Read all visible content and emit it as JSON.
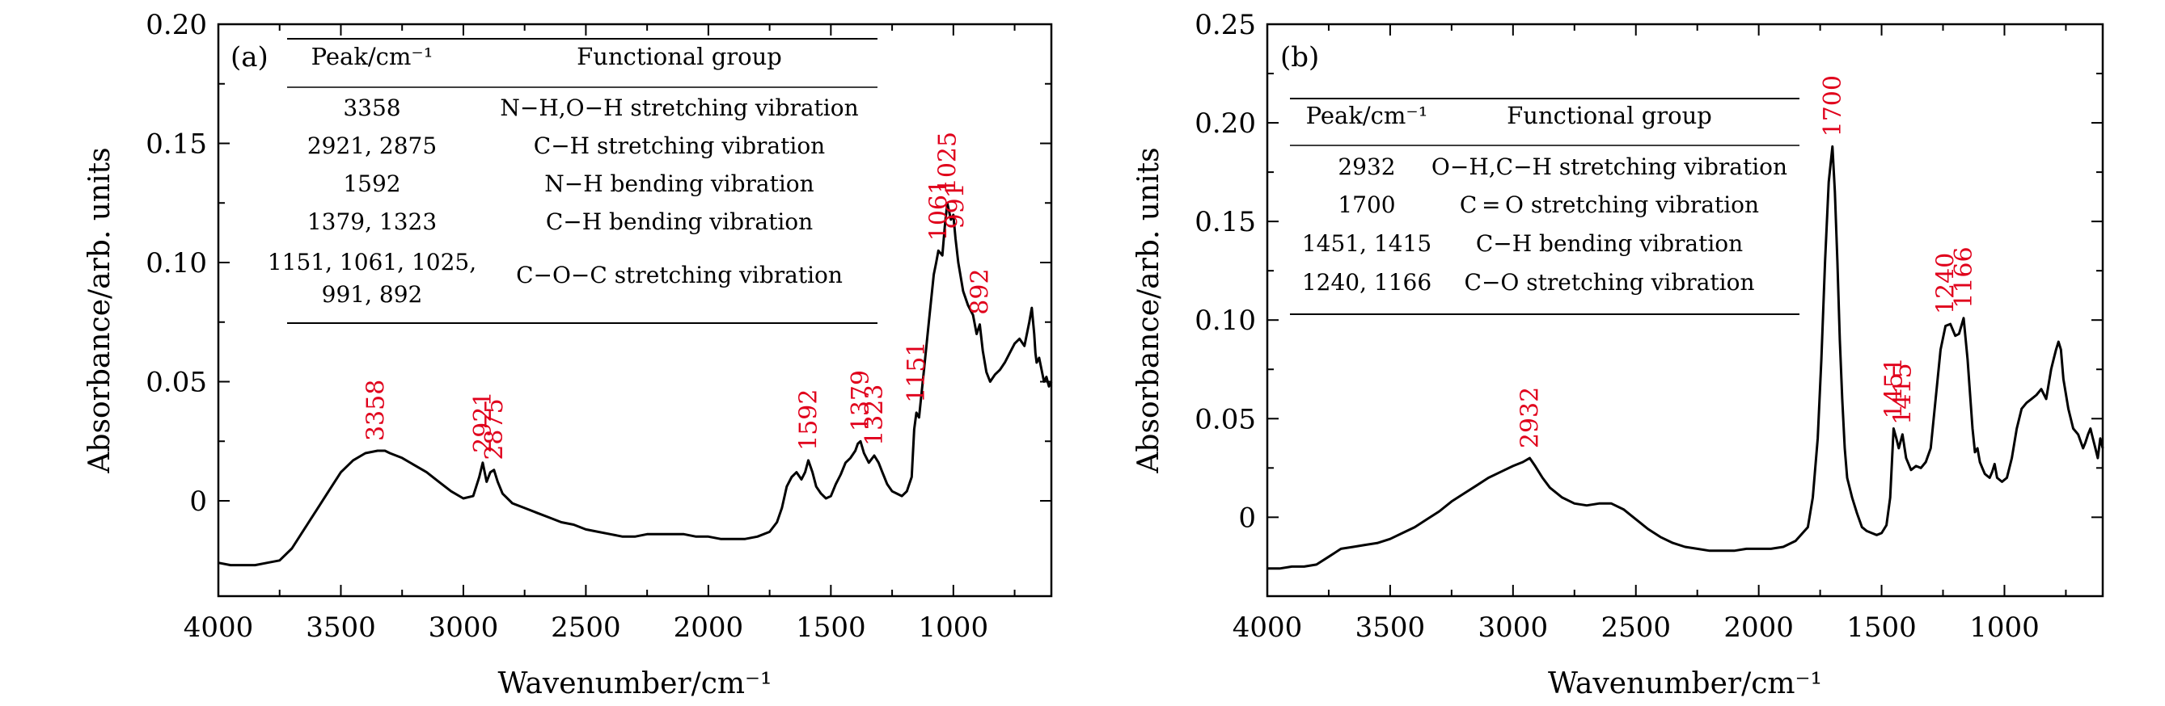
{
  "chart_data": [
    {
      "type": "line",
      "panel_label": "(a)",
      "xlabel": "Wavenumber/cm⁻¹",
      "ylabel": "Absorbance/arb. units",
      "xlim": [
        4000,
        600
      ],
      "ylim": [
        -0.04,
        0.2
      ],
      "x_reversed": true,
      "x_ticks": [
        4000,
        3500,
        3000,
        2500,
        2000,
        1500,
        1000
      ],
      "x_tick_labels": [
        "4000",
        "3500",
        "3000",
        "2500",
        "2000",
        "1500",
        "1000"
      ],
      "y_ticks": [
        0,
        0.05,
        0.1,
        0.15,
        0.2
      ],
      "y_tick_labels": [
        "0",
        "0.05",
        "0.10",
        "0.15",
        "0.20"
      ],
      "grid": false,
      "series": [
        {
          "color": "#000000",
          "x": [
            4000,
            3950,
            3900,
            3850,
            3800,
            3750,
            3700,
            3650,
            3600,
            3550,
            3500,
            3450,
            3400,
            3350,
            3320,
            3300,
            3250,
            3200,
            3150,
            3100,
            3050,
            3000,
            2960,
            2935,
            2921,
            2905,
            2890,
            2875,
            2860,
            2840,
            2800,
            2750,
            2700,
            2650,
            2600,
            2550,
            2500,
            2450,
            2400,
            2350,
            2300,
            2250,
            2200,
            2150,
            2100,
            2050,
            2000,
            1950,
            1900,
            1850,
            1800,
            1750,
            1720,
            1700,
            1680,
            1660,
            1640,
            1620,
            1605,
            1592,
            1575,
            1560,
            1540,
            1520,
            1500,
            1480,
            1460,
            1440,
            1420,
            1400,
            1390,
            1379,
            1365,
            1345,
            1323,
            1305,
            1290,
            1270,
            1250,
            1230,
            1210,
            1190,
            1170,
            1160,
            1151,
            1140,
            1120,
            1100,
            1080,
            1070,
            1061,
            1045,
            1035,
            1025,
            1010,
            1000,
            991,
            980,
            960,
            940,
            920,
            905,
            892,
            880,
            865,
            850,
            830,
            810,
            790,
            770,
            750,
            730,
            710,
            690,
            680,
            670,
            665,
            660,
            650,
            640,
            630,
            620,
            610,
            600
          ],
          "y": [
            -0.026,
            -0.027,
            -0.027,
            -0.027,
            -0.026,
            -0.025,
            -0.02,
            -0.012,
            -0.004,
            0.004,
            0.012,
            0.017,
            0.02,
            0.021,
            0.021,
            0.02,
            0.018,
            0.015,
            0.012,
            0.008,
            0.004,
            0.001,
            0.002,
            0.01,
            0.016,
            0.008,
            0.012,
            0.013,
            0.008,
            0.003,
            -0.001,
            -0.003,
            -0.005,
            -0.007,
            -0.009,
            -0.01,
            -0.012,
            -0.013,
            -0.014,
            -0.015,
            -0.015,
            -0.014,
            -0.014,
            -0.014,
            -0.014,
            -0.015,
            -0.015,
            -0.016,
            -0.016,
            -0.016,
            -0.015,
            -0.013,
            -0.009,
            -0.003,
            0.006,
            0.01,
            0.012,
            0.009,
            0.012,
            0.017,
            0.012,
            0.006,
            0.003,
            0.001,
            0.002,
            0.007,
            0.011,
            0.016,
            0.018,
            0.021,
            0.024,
            0.025,
            0.02,
            0.016,
            0.019,
            0.016,
            0.012,
            0.007,
            0.004,
            0.003,
            0.002,
            0.004,
            0.01,
            0.03,
            0.037,
            0.035,
            0.055,
            0.075,
            0.095,
            0.1,
            0.105,
            0.103,
            0.115,
            0.125,
            0.118,
            0.12,
            0.11,
            0.1,
            0.088,
            0.082,
            0.078,
            0.07,
            0.074,
            0.063,
            0.054,
            0.05,
            0.053,
            0.055,
            0.058,
            0.062,
            0.066,
            0.068,
            0.065,
            0.075,
            0.081,
            0.07,
            0.062,
            0.058,
            0.06,
            0.055,
            0.05,
            0.052,
            0.048,
            0.05
          ]
        }
      ],
      "peak_labels": [
        {
          "text": "3358",
          "x": 3358,
          "y": 0.021
        },
        {
          "text": "2921",
          "x": 2921,
          "y": 0.016
        },
        {
          "text": "2875",
          "x": 2875,
          "y": 0.013
        },
        {
          "text": "1592",
          "x": 1592,
          "y": 0.017
        },
        {
          "text": "1379",
          "x": 1379,
          "y": 0.025
        },
        {
          "text": "1323",
          "x": 1323,
          "y": 0.019
        },
        {
          "text": "1151",
          "x": 1151,
          "y": 0.037
        },
        {
          "text": "1061",
          "x": 1061,
          "y": 0.105
        },
        {
          "text": "1025",
          "x": 1025,
          "y": 0.125
        },
        {
          "text": "991",
          "x": 991,
          "y": 0.11
        },
        {
          "text": "892",
          "x": 892,
          "y": 0.074
        }
      ],
      "table": {
        "headers": [
          "Peak/cm⁻¹",
          "Functional group"
        ],
        "rows": [
          {
            "peak": [
              "3358"
            ],
            "group": "N−H,O−H stretching vibration"
          },
          {
            "peak": [
              "2921, 2875"
            ],
            "group": "C−H stretching vibration"
          },
          {
            "peak": [
              "1592"
            ],
            "group": "N−H bending vibration"
          },
          {
            "peak": [
              "1379, 1323"
            ],
            "group": "C−H bending vibration"
          },
          {
            "peak": [
              "1151, 1061, 1025,",
              "991, 892"
            ],
            "group": "C−O−C stretching vibration"
          }
        ]
      }
    },
    {
      "type": "line",
      "panel_label": "(b)",
      "xlabel": "Wavenumber/cm⁻¹",
      "ylabel": "Absorbance/arb. units",
      "xlim": [
        4000,
        600
      ],
      "ylim": [
        -0.04,
        0.25
      ],
      "x_reversed": true,
      "x_ticks": [
        4000,
        3500,
        3000,
        2500,
        2000,
        1500,
        1000
      ],
      "x_tick_labels": [
        "4000",
        "3500",
        "3000",
        "2500",
        "2000",
        "1500",
        "1000"
      ],
      "y_ticks": [
        0,
        0.05,
        0.1,
        0.15,
        0.2,
        0.25
      ],
      "y_tick_labels": [
        "0",
        "0.05",
        "0.10",
        "0.15",
        "0.20",
        "0.25"
      ],
      "grid": false,
      "series": [
        {
          "color": "#000000",
          "x": [
            4000,
            3950,
            3900,
            3850,
            3800,
            3750,
            3700,
            3650,
            3600,
            3550,
            3500,
            3450,
            3400,
            3350,
            3300,
            3250,
            3200,
            3150,
            3100,
            3050,
            3000,
            2960,
            2932,
            2910,
            2880,
            2850,
            2800,
            2750,
            2700,
            2650,
            2600,
            2550,
            2500,
            2450,
            2400,
            2350,
            2300,
            2250,
            2200,
            2150,
            2100,
            2050,
            2000,
            1950,
            1900,
            1850,
            1800,
            1780,
            1760,
            1745,
            1730,
            1715,
            1700,
            1690,
            1680,
            1670,
            1660,
            1650,
            1640,
            1620,
            1600,
            1580,
            1560,
            1540,
            1520,
            1500,
            1480,
            1465,
            1451,
            1440,
            1430,
            1415,
            1400,
            1380,
            1360,
            1340,
            1320,
            1300,
            1280,
            1260,
            1240,
            1220,
            1200,
            1185,
            1166,
            1150,
            1130,
            1120,
            1110,
            1100,
            1090,
            1080,
            1070,
            1060,
            1050,
            1040,
            1030,
            1010,
            990,
            970,
            950,
            930,
            910,
            890,
            870,
            850,
            830,
            810,
            800,
            790,
            780,
            770,
            760,
            740,
            720,
            700,
            680,
            670,
            660,
            650,
            640,
            630,
            620,
            610,
            600
          ],
          "y": [
            -0.026,
            -0.026,
            -0.025,
            -0.025,
            -0.024,
            -0.02,
            -0.016,
            -0.015,
            -0.014,
            -0.013,
            -0.011,
            -0.008,
            -0.005,
            -0.001,
            0.003,
            0.008,
            0.012,
            0.016,
            0.02,
            0.023,
            0.026,
            0.028,
            0.03,
            0.026,
            0.02,
            0.015,
            0.01,
            0.007,
            0.006,
            0.007,
            0.007,
            0.004,
            -0.001,
            -0.006,
            -0.01,
            -0.013,
            -0.015,
            -0.016,
            -0.017,
            -0.017,
            -0.017,
            -0.016,
            -0.016,
            -0.016,
            -0.015,
            -0.012,
            -0.005,
            0.01,
            0.04,
            0.08,
            0.13,
            0.17,
            0.188,
            0.165,
            0.13,
            0.09,
            0.06,
            0.035,
            0.02,
            0.01,
            0.002,
            -0.005,
            -0.007,
            -0.008,
            -0.009,
            -0.008,
            -0.004,
            0.01,
            0.045,
            0.04,
            0.035,
            0.042,
            0.03,
            0.024,
            0.026,
            0.025,
            0.028,
            0.035,
            0.06,
            0.085,
            0.097,
            0.098,
            0.092,
            0.093,
            0.101,
            0.08,
            0.045,
            0.033,
            0.035,
            0.028,
            0.025,
            0.022,
            0.021,
            0.02,
            0.023,
            0.027,
            0.02,
            0.018,
            0.02,
            0.03,
            0.045,
            0.055,
            0.058,
            0.06,
            0.062,
            0.065,
            0.06,
            0.075,
            0.08,
            0.085,
            0.089,
            0.085,
            0.07,
            0.055,
            0.045,
            0.042,
            0.035,
            0.038,
            0.042,
            0.045,
            0.04,
            0.035,
            0.03,
            0.04,
            0.035
          ]
        }
      ],
      "peak_labels": [
        {
          "text": "2932",
          "x": 2932,
          "y": 0.03
        },
        {
          "text": "1700",
          "x": 1700,
          "y": 0.188
        },
        {
          "text": "1451",
          "x": 1451,
          "y": 0.045
        },
        {
          "text": "1415",
          "x": 1415,
          "y": 0.042
        },
        {
          "text": "1240",
          "x": 1240,
          "y": 0.098
        },
        {
          "text": "1166",
          "x": 1166,
          "y": 0.101
        }
      ],
      "table": {
        "headers": [
          "Peak/cm⁻¹",
          "Functional group"
        ],
        "rows": [
          {
            "peak": [
              "2932"
            ],
            "group": "O−H,C−H stretching vibration"
          },
          {
            "peak": [
              "1700"
            ],
            "group": "C = O stretching vibration"
          },
          {
            "peak": [
              "1451, 1415"
            ],
            "group": "C−H bending vibration"
          },
          {
            "peak": [
              "1240, 1166"
            ],
            "group": "C−O stretching vibration"
          }
        ]
      }
    }
  ]
}
